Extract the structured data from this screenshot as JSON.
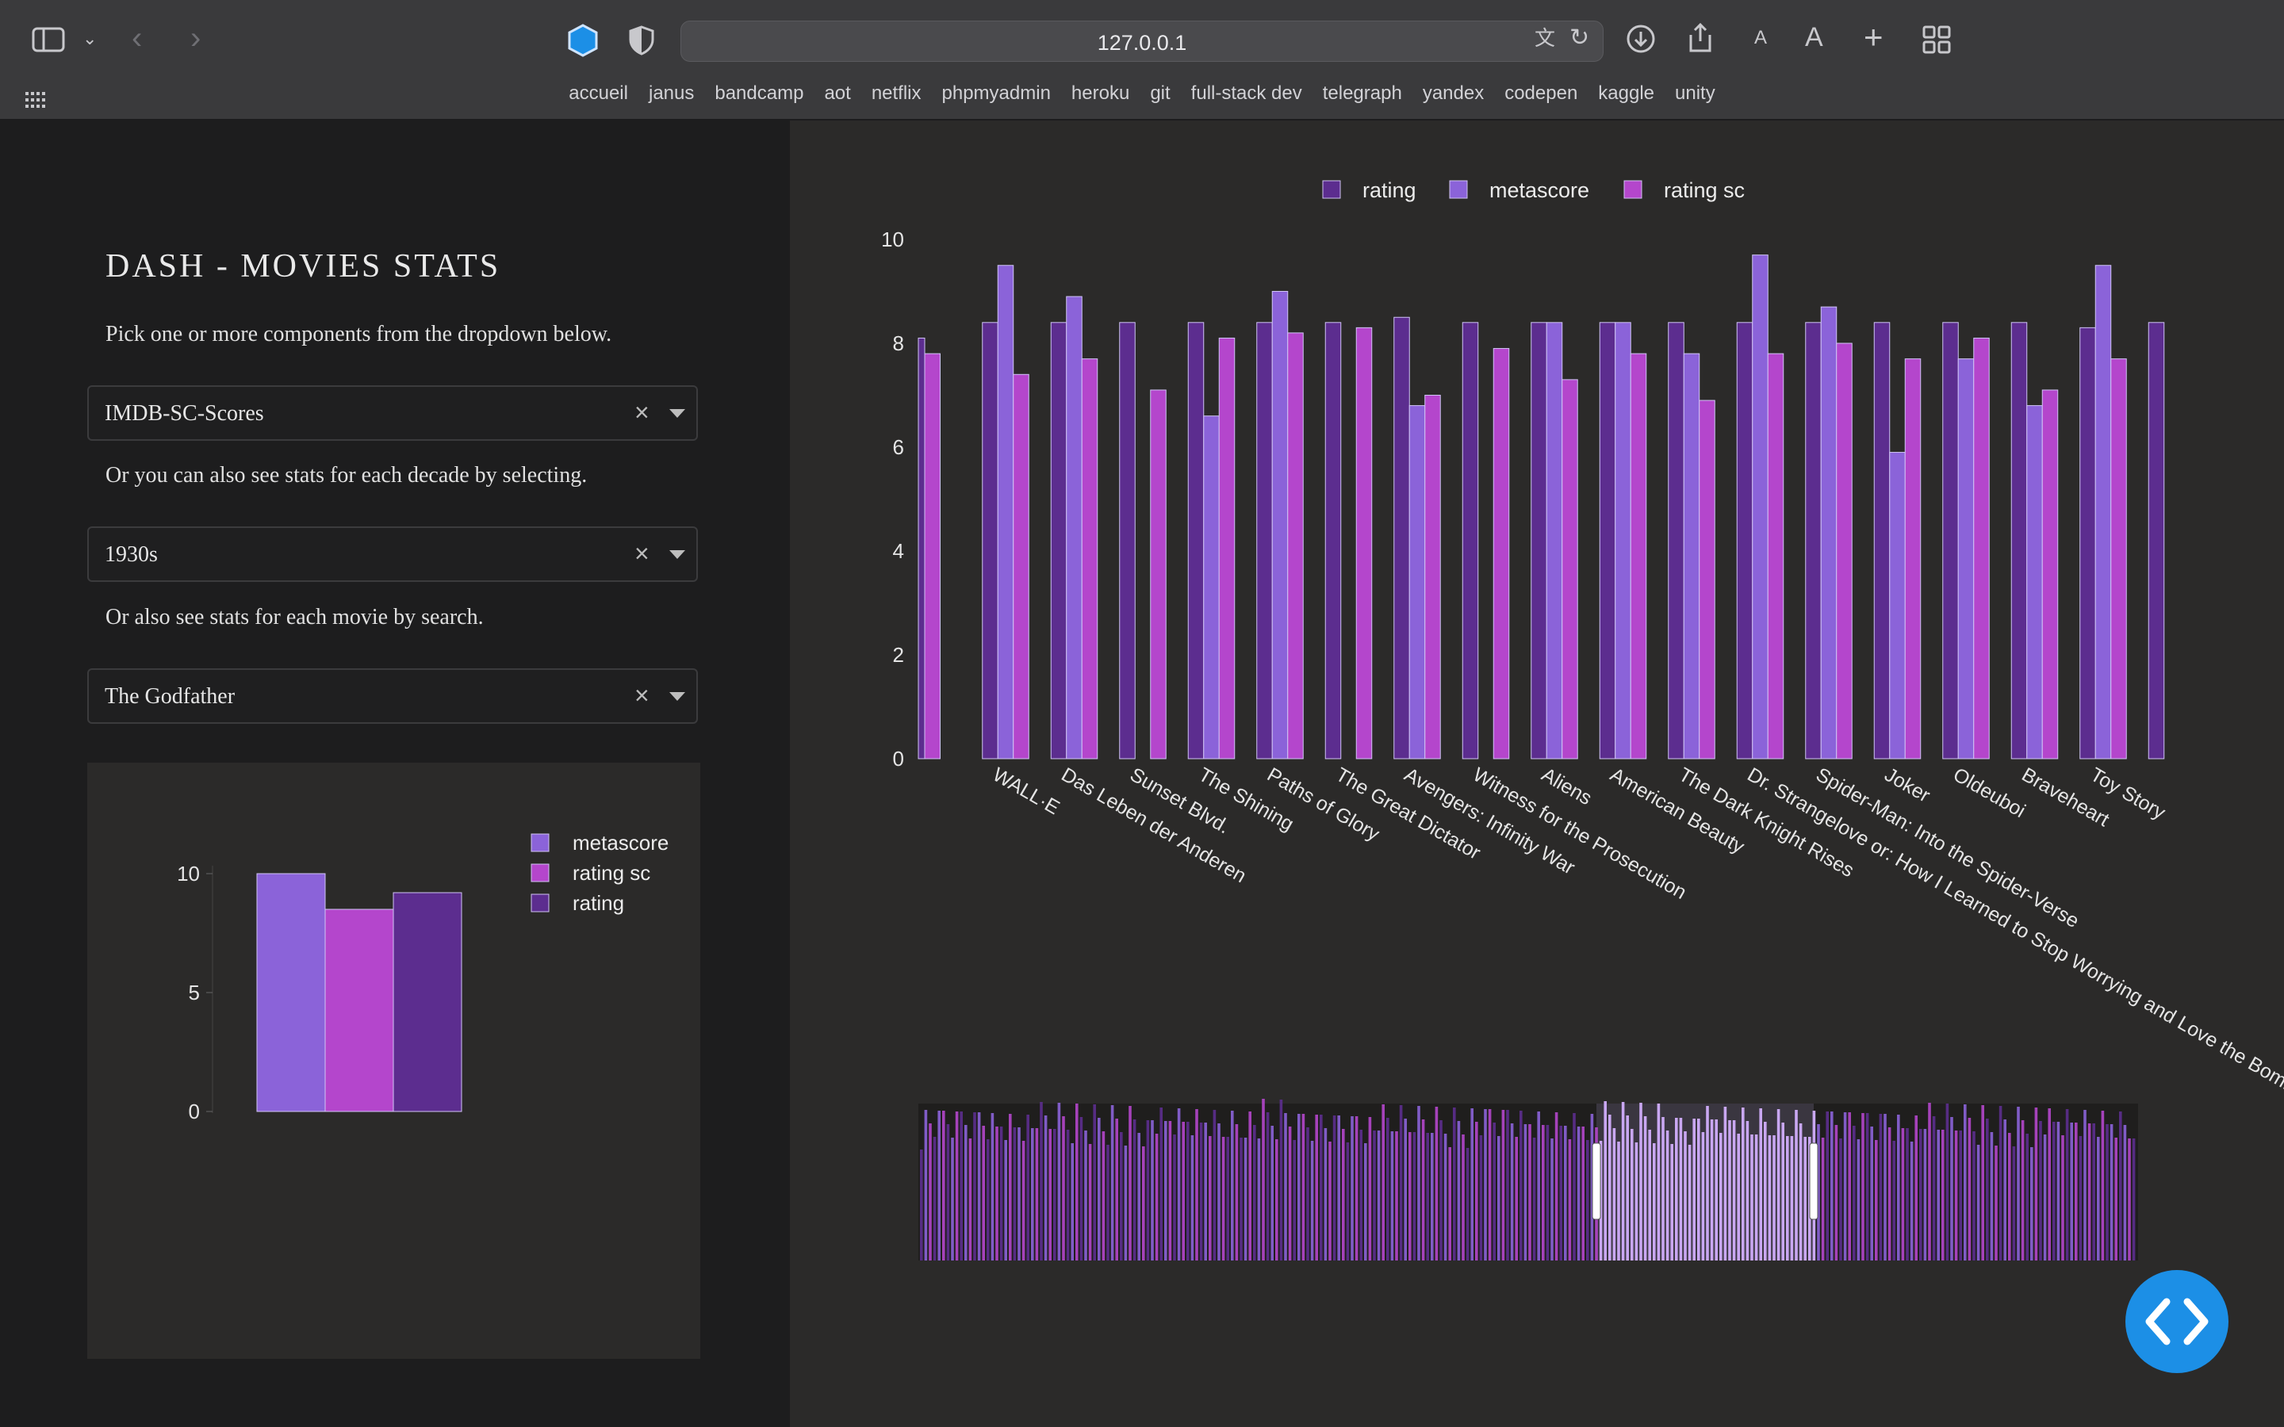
{
  "browser": {
    "url": "127.0.0.1",
    "bookmarks": [
      "accueil",
      "janus",
      "bandcamp",
      "aot",
      "netflix",
      "phpmyadmin",
      "heroku",
      "git",
      "full-stack dev",
      "telegraph",
      "yandex",
      "codepen",
      "kaggle",
      "unity"
    ]
  },
  "app": {
    "title": "DASH - MOVIES STATS",
    "intro": "Pick one or more components from the dropdown below.",
    "decade_text": "Or you can also see stats for each decade by selecting.",
    "movie_text": "Or also see stats for each movie by search.",
    "dropdowns": {
      "components": "IMDB-SC-Scores",
      "decade": "1930s",
      "movie": "The Godfather"
    },
    "clear_glyph": "×"
  },
  "colors": {
    "rating": "#5c2d8f",
    "metascore": "#8b63d9",
    "rating_sc": "#b446cc",
    "fab": "#1c8fe6"
  },
  "chart_data": [
    {
      "type": "bar",
      "legend": [
        "rating",
        "metascore",
        "rating sc"
      ],
      "legend_position": "top-center",
      "ylim": [
        0,
        10
      ],
      "y_ticks": [
        0,
        2,
        4,
        6,
        8,
        10
      ],
      "grid": false,
      "leading_bars": {
        "rating": 8.1,
        "rating_sc": 7.8
      },
      "categories": [
        "WALL·E",
        "Das Leben der Anderen",
        "Sunset Blvd.",
        "The Shining",
        "Paths of Glory",
        "The Great Dictator",
        "Avengers: Infinity War",
        "Witness for the Prosecution",
        "Aliens",
        "American Beauty",
        "The Dark Knight Rises",
        "Dr. Strangelove or: How I Learned to Stop Worrying and Love the Bomb",
        "Spider-Man: Into the Spider-Verse",
        "Joker",
        "Oldeuboi",
        "Braveheart",
        "Toy Story"
      ],
      "series": [
        {
          "name": "rating",
          "values": [
            8.4,
            8.4,
            8.4,
            8.4,
            8.4,
            8.4,
            8.5,
            8.4,
            8.4,
            8.4,
            8.4,
            8.4,
            8.4,
            8.4,
            8.4,
            8.4,
            8.3
          ]
        },
        {
          "name": "metascore",
          "values": [
            9.5,
            8.9,
            null,
            6.6,
            9.0,
            null,
            6.8,
            null,
            8.4,
            8.4,
            7.8,
            9.7,
            8.7,
            5.9,
            7.7,
            6.8,
            9.5
          ]
        },
        {
          "name": "rating sc",
          "values": [
            7.4,
            7.7,
            7.1,
            8.1,
            8.2,
            8.3,
            7.0,
            7.9,
            7.3,
            7.8,
            6.9,
            7.8,
            8.0,
            7.7,
            8.1,
            7.1,
            7.7
          ]
        }
      ],
      "trailing_bars": {
        "rating": 8.4
      },
      "range_slider": true
    },
    {
      "type": "bar",
      "legend": [
        "metascore",
        "rating sc",
        "rating"
      ],
      "legend_position": "right",
      "ylim": [
        0,
        10
      ],
      "y_ticks": [
        0,
        5,
        10
      ],
      "categories": [
        "The Godfather"
      ],
      "series": [
        {
          "name": "metascore",
          "values": [
            10.0
          ]
        },
        {
          "name": "rating sc",
          "values": [
            8.5
          ]
        },
        {
          "name": "rating",
          "values": [
            9.2
          ]
        }
      ]
    }
  ]
}
